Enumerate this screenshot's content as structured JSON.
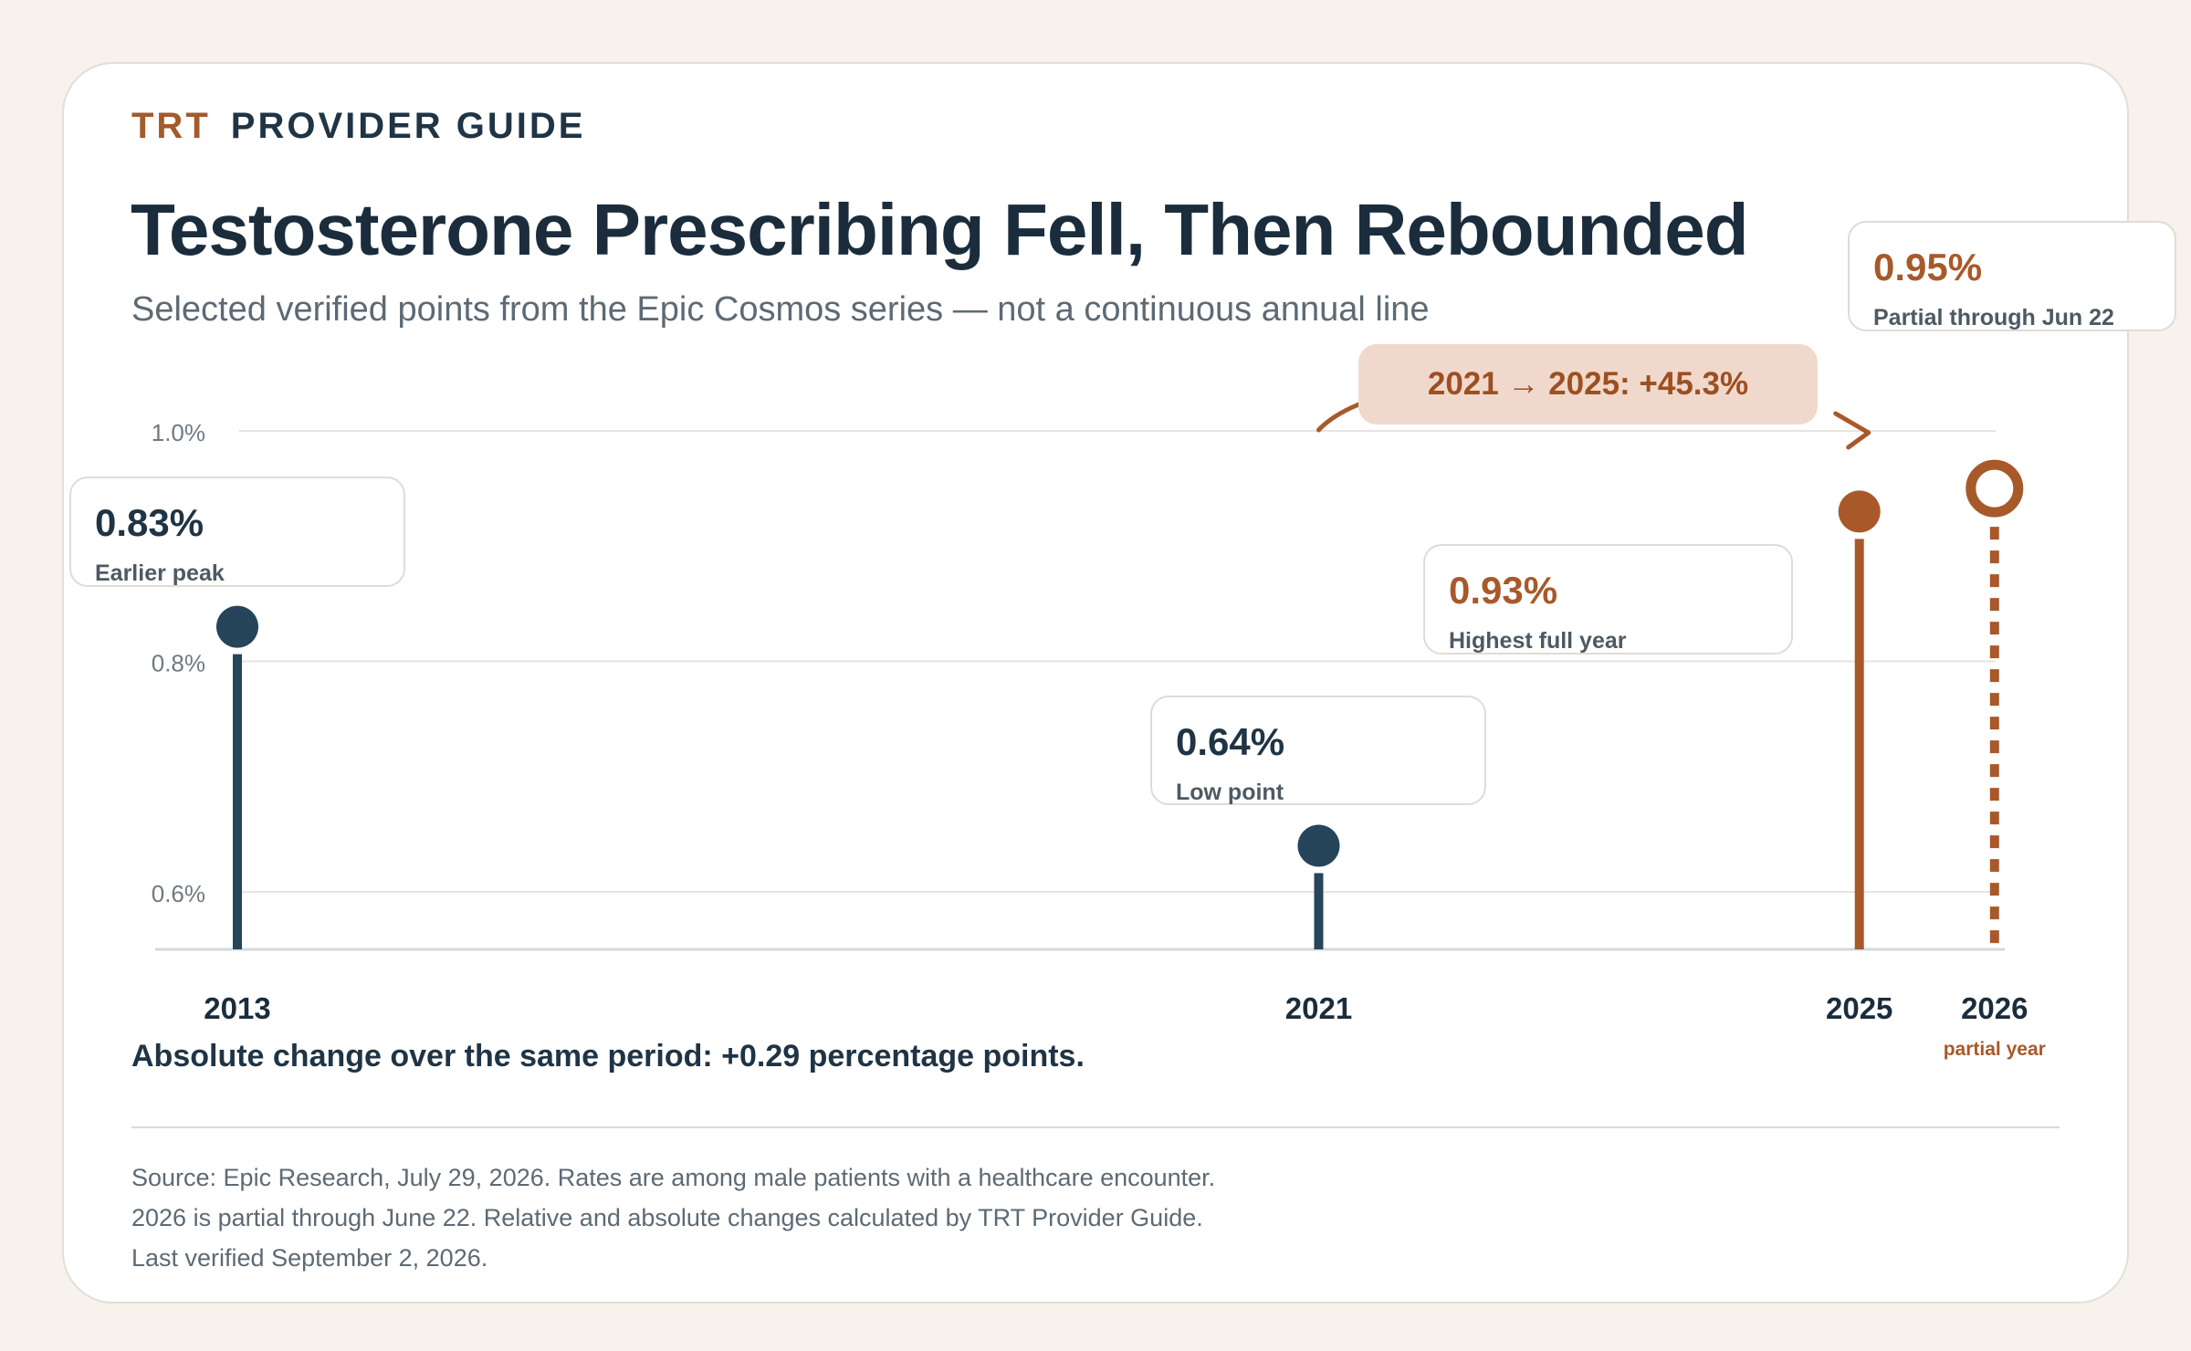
{
  "brand": {
    "primary": "TRT",
    "secondary": "PROVIDER GUIDE"
  },
  "title": "Testosterone Prescribing Fell, Then Rebounded",
  "subtitle": "Selected verified points from the Epic Cosmos series — not a continuous annual line",
  "change_pill": "2021 → 2025: +45.3%",
  "callouts": [
    {
      "value": "0.83%",
      "label": "Earlier peak"
    },
    {
      "value": "0.64%",
      "label": "Low point"
    },
    {
      "value": "0.93%",
      "label": "Highest full year"
    },
    {
      "value": "0.95%",
      "label": "Partial through Jun 22"
    }
  ],
  "absolute_change": "Absolute change over the same period: +0.29 percentage points.",
  "source_lines": [
    "Source: Epic Research, July 29, 2026. Rates are among male patients with a healthcare encounter.",
    "2026 is partial through June 22. Relative and absolute changes calculated by TRT Provider Guide.",
    "Last verified September 2, 2026."
  ],
  "colors": {
    "navy": "#26445a",
    "accent": "#a8592a",
    "grid": "#e6e4df"
  },
  "chart_data": {
    "type": "scatter",
    "style": "lollipop",
    "x": [
      2013,
      2021,
      2025,
      2026
    ],
    "y": [
      0.83,
      0.64,
      0.93,
      0.95
    ],
    "y_unit": "%",
    "x_tick_labels": [
      "2013",
      "2021",
      "2025",
      "2026"
    ],
    "x_tick_sublabels": [
      "",
      "",
      "",
      "partial year"
    ],
    "y_ticks": [
      "1.0%",
      "0.8%",
      "0.6%"
    ],
    "y_tick_values": [
      1.0,
      0.8,
      0.6
    ],
    "ylim": [
      0.55,
      1.0
    ],
    "grid": true,
    "highlight": [
      false,
      false,
      true,
      true
    ],
    "partial": [
      false,
      false,
      false,
      true
    ]
  }
}
